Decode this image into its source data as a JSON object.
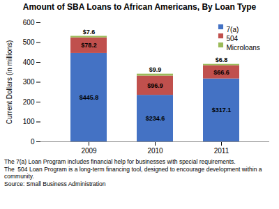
{
  "chart_data": {
    "type": "bar",
    "stacked": true,
    "title": "Amount of SBA Loans to African Americans, By Loan Type",
    "categories": [
      "2009",
      "2010",
      "2011"
    ],
    "series": [
      {
        "name": "7(a)",
        "color": "#4472C4",
        "values": [
          445.8,
          234.6,
          317.1
        ],
        "value_labels": [
          "$445.8",
          "$234.6",
          "$317.1"
        ]
      },
      {
        "name": "504",
        "color": "#C0504D",
        "values": [
          78.2,
          96.9,
          66.6
        ],
        "value_labels": [
          "$78.2",
          "$96.9",
          "$66.6"
        ]
      },
      {
        "name": "Microloans",
        "color": "#9BBB59",
        "values": [
          7.6,
          9.9,
          6.8
        ],
        "value_labels": [
          "$7.6",
          "$9.9",
          "$6.8"
        ]
      }
    ],
    "ylabel": "Current Dollars (in millions)",
    "ylim": [
      0,
      600
    ],
    "yticks": [
      0,
      100,
      200,
      300,
      400,
      500,
      600
    ],
    "grid": false,
    "legend": "upper right",
    "data_labels": true,
    "annotations": [
      "The 7(a) Loan Program includes financial help for businesses with special requirements.",
      "The  504 Loan Program is a long-term financing tool, designed to encourage development within a community.",
      "Source: Small Business Administration"
    ]
  }
}
